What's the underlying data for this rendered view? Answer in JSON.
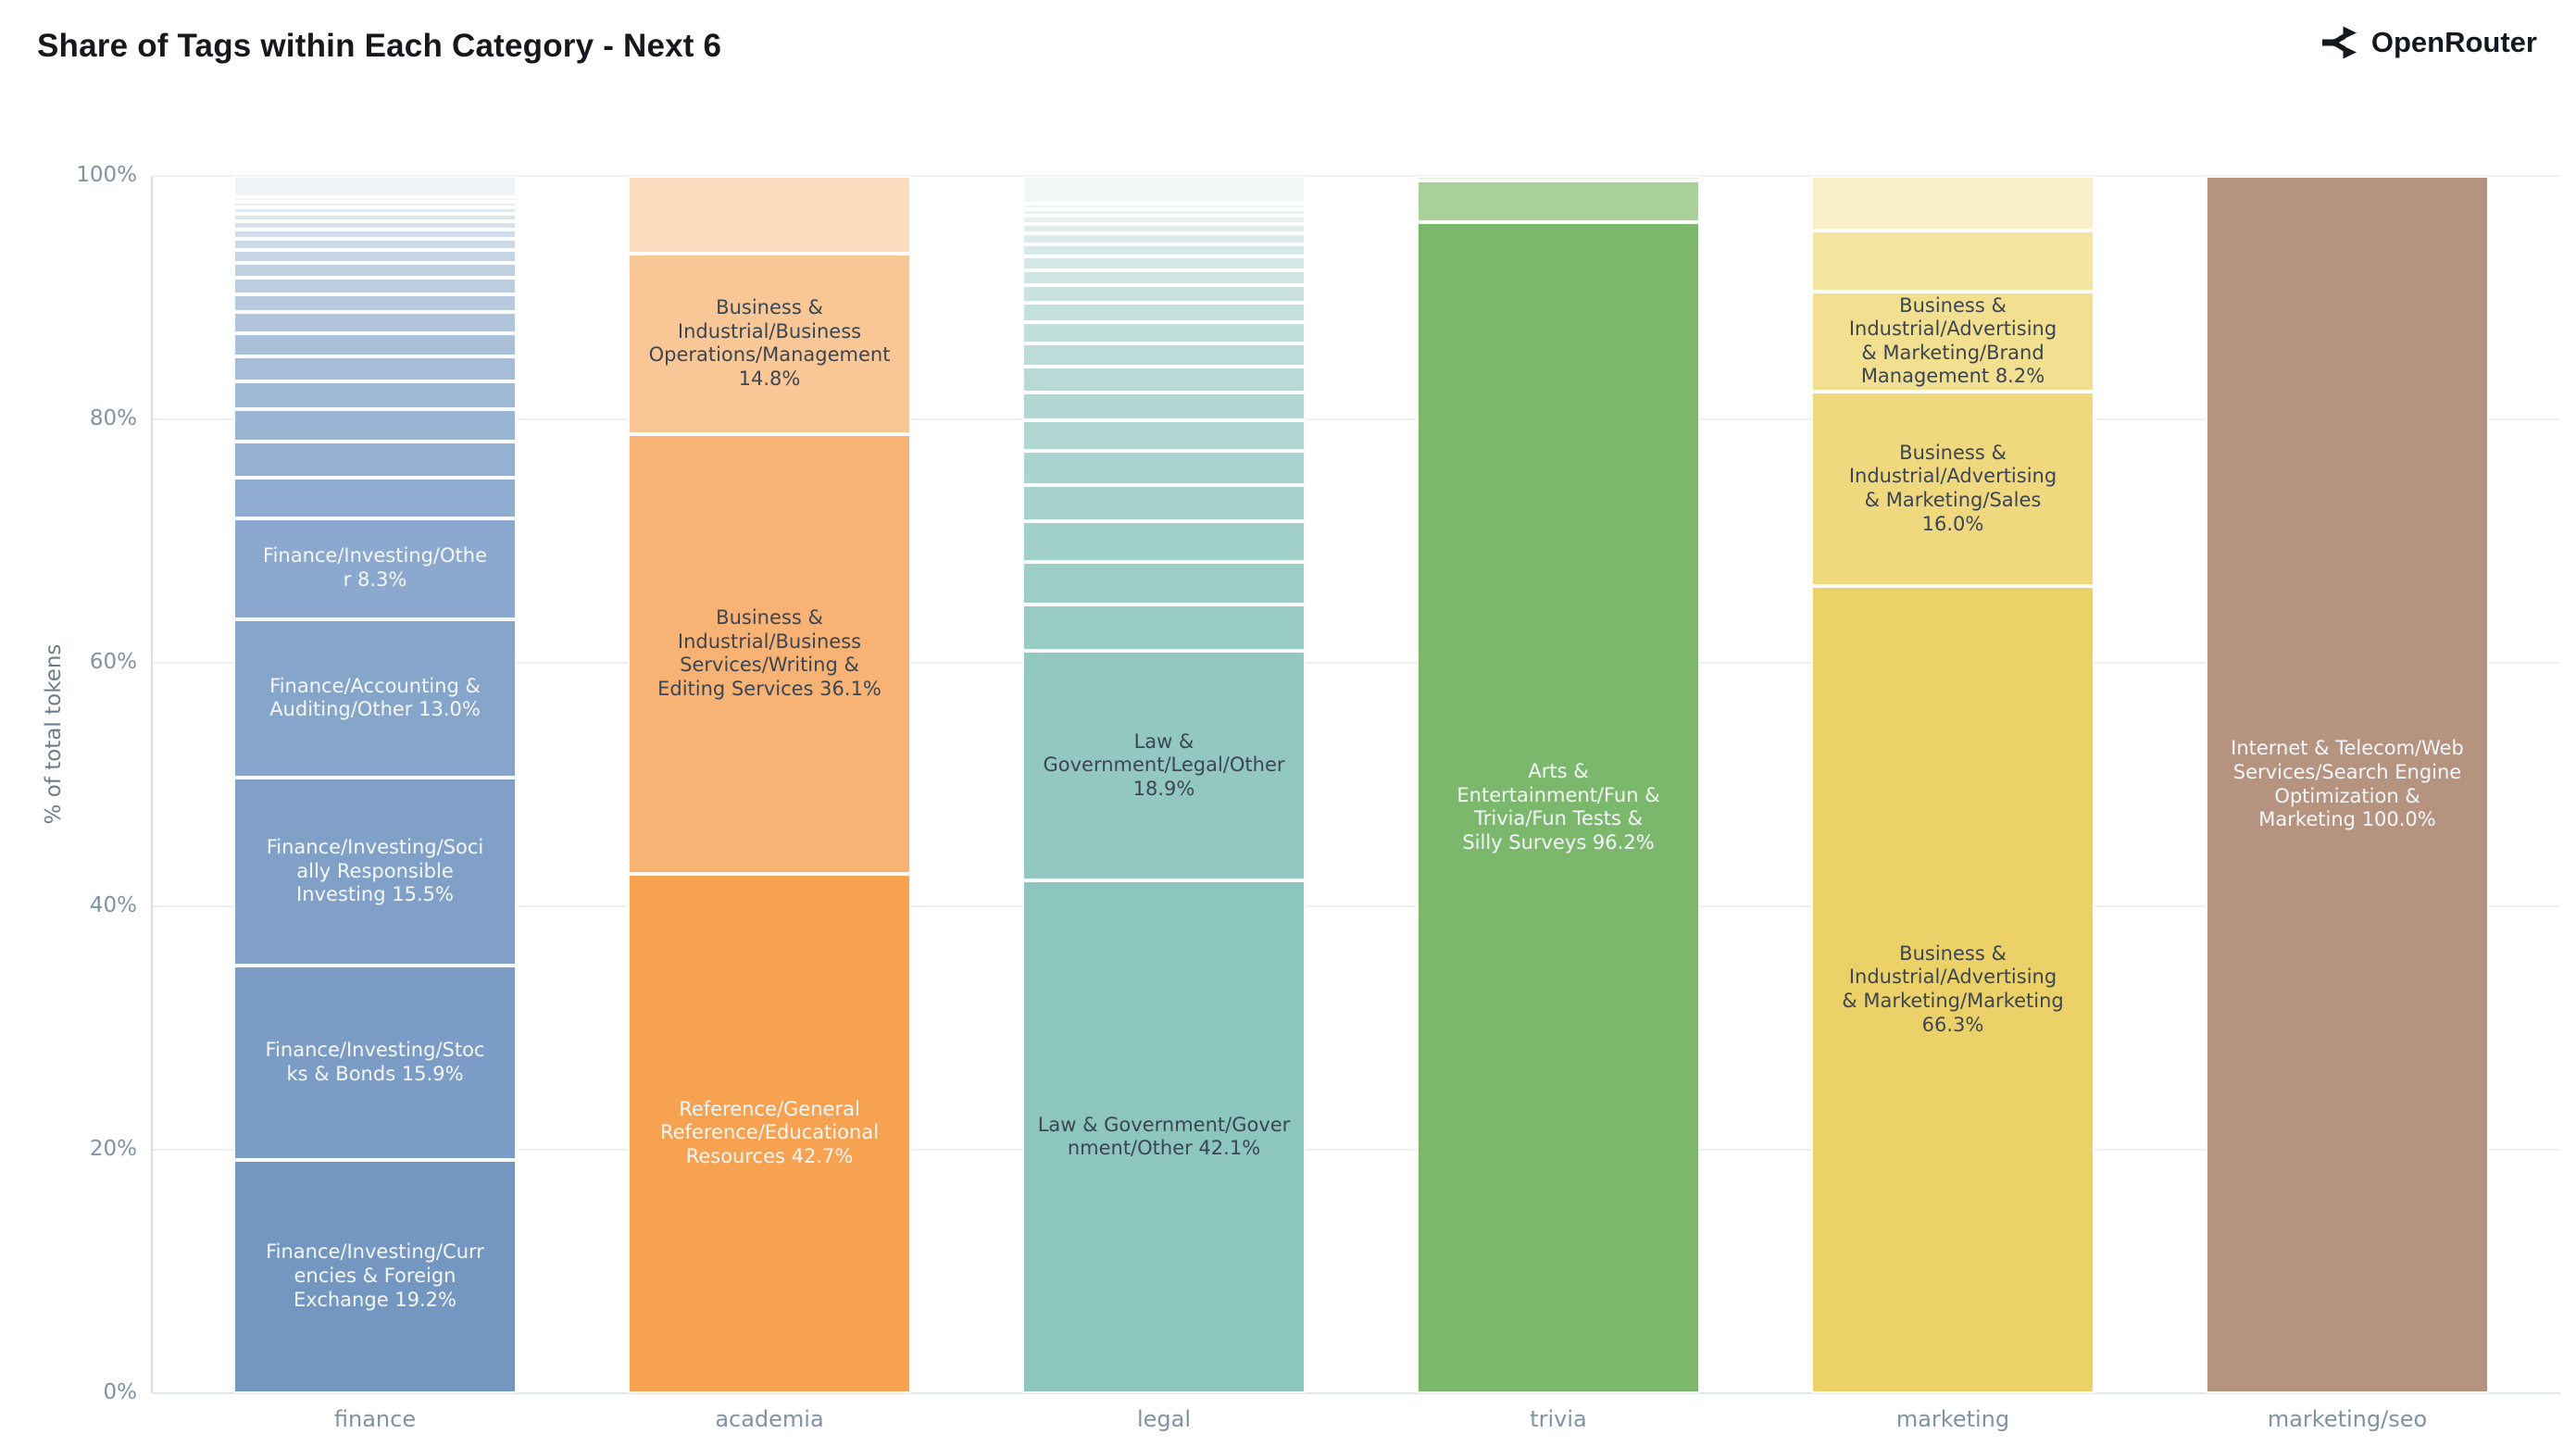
{
  "header": {
    "title": "Share of Tags within Each Category - Next 6",
    "brand": "OpenRouter"
  },
  "chart_data": {
    "type": "bar",
    "variant": "stacked-100-percent",
    "title": "Share of Tags within Each Category - Next 6",
    "ylabel": "% of total tokens",
    "yticks": [
      "0%",
      "20%",
      "40%",
      "60%",
      "80%",
      "100%"
    ],
    "ytick_values": [
      0,
      20,
      40,
      60,
      80,
      100
    ],
    "ylim": [
      0,
      100
    ],
    "grid": true,
    "legend": "none",
    "categories": [
      "finance",
      "academia",
      "legal",
      "trivia",
      "marketing",
      "marketing/seo"
    ],
    "text_colors": {
      "light": "#f4f7f9",
      "dark": "#3c4653"
    },
    "bars": [
      {
        "category": "finance",
        "base_color": "#7b9dc5",
        "segments": [
          {
            "label": "Finance/Investing/Curr\nencies & Foreign\nExchange 19.2%",
            "pct": 19.2,
            "color": "#7497c2",
            "text": "light"
          },
          {
            "label": "Finance/Investing/Stoc\nks & Bonds 15.9%",
            "pct": 15.9,
            "color": "#7b9cc6",
            "text": "light"
          },
          {
            "label": "Finance/Investing/Soci\nally Responsible\nInvesting 15.5%",
            "pct": 15.5,
            "color": "#80a0c8",
            "text": "light"
          },
          {
            "label": "Finance/Accounting &\nAuditing/Other 13.0%",
            "pct": 13.0,
            "color": "#86a5cb",
            "text": "light"
          },
          {
            "label": "Finance/Investing/Othe\nr 8.3%",
            "pct": 8.3,
            "color": "#8ba9ce",
            "text": "light"
          },
          {
            "label": null,
            "pct": 3.3,
            "color": "#8fadd0"
          },
          {
            "label": null,
            "pct": 3.0,
            "color": "#95b1d2"
          },
          {
            "label": null,
            "pct": 2.6,
            "color": "#9ab5d4"
          },
          {
            "label": null,
            "pct": 2.3,
            "color": "#a0b9d6"
          },
          {
            "label": null,
            "pct": 2.1,
            "color": "#a5bdd8"
          },
          {
            "label": null,
            "pct": 1.9,
            "color": "#abc1da"
          },
          {
            "label": null,
            "pct": 1.7,
            "color": "#b0c5dc"
          },
          {
            "label": null,
            "pct": 1.5,
            "color": "#b6c9de"
          },
          {
            "label": null,
            "pct": 1.35,
            "color": "#bbcde0"
          },
          {
            "label": null,
            "pct": 1.2,
            "color": "#c1d1e2"
          },
          {
            "label": null,
            "pct": 1.05,
            "color": "#c6d5e4"
          },
          {
            "label": null,
            "pct": 0.9,
            "color": "#ccd9e6"
          },
          {
            "label": null,
            "pct": 0.8,
            "color": "#d1dde8"
          },
          {
            "label": null,
            "pct": 0.7,
            "color": "#d7e1ea"
          },
          {
            "label": null,
            "pct": 0.6,
            "color": "#dce5ec"
          },
          {
            "label": null,
            "pct": 0.5,
            "color": "#e2e9ee"
          },
          {
            "label": null,
            "pct": 0.45,
            "color": "#e7edf0"
          },
          {
            "label": null,
            "pct": 0.4,
            "color": "#ecf1f3"
          },
          {
            "label": null,
            "pct": 1.75,
            "color": "#f1f5f8"
          }
        ]
      },
      {
        "category": "academia",
        "base_color": "#f6a251",
        "segments": [
          {
            "label": "Reference/General\nReference/Educational\nResources 42.7%",
            "pct": 42.7,
            "color": "#f6a251",
            "text": "light"
          },
          {
            "label": "Business &\nIndustrial/Business\nServices/Writing &\nEditing Services 36.1%",
            "pct": 36.1,
            "color": "#f8b273",
            "text": "dark"
          },
          {
            "label": "Business &\nIndustrial/Business\nOperations/Management\n14.8%",
            "pct": 14.8,
            "color": "#f9c795",
            "text": "dark"
          },
          {
            "label": null,
            "pct": 6.4,
            "color": "#fbdcbe"
          }
        ]
      },
      {
        "category": "legal",
        "base_color": "#8dc5bf",
        "segments": [
          {
            "label": "Law & Government/Gover\nnment/Other 42.1%",
            "pct": 42.1,
            "color": "#8dc5bf",
            "text": "dark"
          },
          {
            "label": "Law &\nGovernment/Legal/Other\n18.9%",
            "pct": 18.9,
            "color": "#93c8c2",
            "text": "dark"
          },
          {
            "label": null,
            "pct": 3.8,
            "color": "#98cbc5"
          },
          {
            "label": null,
            "pct": 3.5,
            "color": "#9dcdc7"
          },
          {
            "label": null,
            "pct": 3.3,
            "color": "#a1cfca"
          },
          {
            "label": null,
            "pct": 3.0,
            "color": "#a6d1cc"
          },
          {
            "label": null,
            "pct": 2.8,
            "color": "#aad4cf"
          },
          {
            "label": null,
            "pct": 2.5,
            "color": "#afd6d1"
          },
          {
            "label": null,
            "pct": 2.3,
            "color": "#b3d8d4"
          },
          {
            "label": null,
            "pct": 2.1,
            "color": "#b8dad6"
          },
          {
            "label": null,
            "pct": 1.95,
            "color": "#bcdcd9"
          },
          {
            "label": null,
            "pct": 1.75,
            "color": "#c1dfdb"
          },
          {
            "label": null,
            "pct": 1.6,
            "color": "#c5e1de"
          },
          {
            "label": null,
            "pct": 1.4,
            "color": "#cae3e0"
          },
          {
            "label": null,
            "pct": 1.25,
            "color": "#cee5e3"
          },
          {
            "label": null,
            "pct": 1.15,
            "color": "#d3e7e5"
          },
          {
            "label": null,
            "pct": 1.0,
            "color": "#d7eae8"
          },
          {
            "label": null,
            "pct": 0.9,
            "color": "#dcecea"
          },
          {
            "label": null,
            "pct": 0.75,
            "color": "#e0eeed"
          },
          {
            "label": null,
            "pct": 0.65,
            "color": "#e5f0ef"
          },
          {
            "label": null,
            "pct": 0.55,
            "color": "#e9f3f2"
          },
          {
            "label": null,
            "pct": 0.5,
            "color": "#eef5f4"
          },
          {
            "label": null,
            "pct": 2.25,
            "color": "#f2f7f7"
          }
        ]
      },
      {
        "category": "trivia",
        "base_color": "#7cb86b",
        "segments": [
          {
            "label": "Arts &\nEntertainment/Fun &\nTrivia/Fun Tests &\nSilly Surveys 96.2%",
            "pct": 96.2,
            "color": "#7cb86b",
            "text": "light"
          },
          {
            "label": null,
            "pct": 3.4,
            "color": "#a8d097"
          },
          {
            "label": null,
            "pct": 0.4,
            "color": "#dcedd6"
          }
        ]
      },
      {
        "category": "marketing",
        "base_color": "#ecd169",
        "segments": [
          {
            "label": "Business &\nIndustrial/Advertising\n& Marketing/Marketing\n66.3%",
            "pct": 66.3,
            "color": "#ecd169",
            "text": "dark"
          },
          {
            "label": "Business &\nIndustrial/Advertising\n& Marketing/Sales\n16.0%",
            "pct": 16.0,
            "color": "#efd87e",
            "text": "dark"
          },
          {
            "label": "Business &\nIndustrial/Advertising\n& Marketing/Brand\nManagement 8.2%",
            "pct": 8.2,
            "color": "#f3df90",
            "text": "dark"
          },
          {
            "label": null,
            "pct": 5.0,
            "color": "#f5e5a2"
          },
          {
            "label": null,
            "pct": 4.5,
            "color": "#faf0c8"
          }
        ]
      },
      {
        "category": "marketing/seo",
        "base_color": "#b5937e",
        "segments": [
          {
            "label": "Internet & Telecom/Web\nServices/Search Engine\nOptimization &\nMarketing 100.0%",
            "pct": 100.0,
            "color": "#b5937e",
            "text": "light"
          }
        ]
      }
    ]
  }
}
